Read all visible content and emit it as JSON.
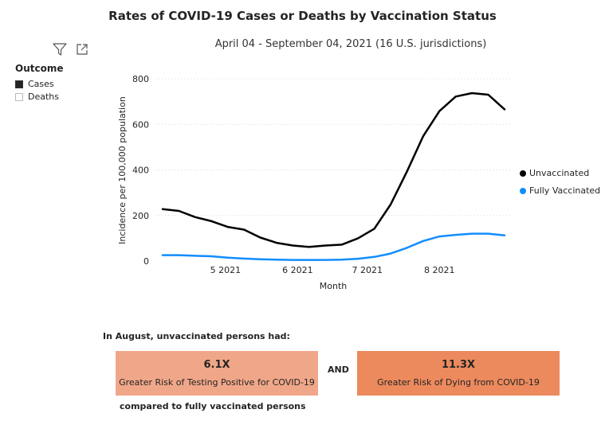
{
  "title": "Rates of COVID-19 Cases or Deaths by Vaccination Status",
  "subtitle": "April 04 - September 04, 2021 (16 U.S. jurisdictions)",
  "toolbar": {
    "filter_icon": "filter-icon",
    "focus_icon": "focus-mode-icon"
  },
  "slicer": {
    "title": "Outcome",
    "items": [
      {
        "label": "Cases",
        "selected": true
      },
      {
        "label": "Deaths",
        "selected": false
      }
    ]
  },
  "chart_data": {
    "type": "line",
    "xlabel": "Month",
    "ylabel": "Incidence per 100,000 population",
    "ylim": [
      0,
      800
    ],
    "yticks": [
      0,
      200,
      400,
      600,
      800
    ],
    "xticks": [
      "5 2021",
      "6 2021",
      "7 2021",
      "8 2021"
    ],
    "grid": true,
    "legend_position": "right",
    "weeks": 22,
    "series": [
      {
        "name": "Unvaccinated",
        "color": "#000000",
        "values": [
          228,
          220,
          193,
          175,
          150,
          138,
          103,
          80,
          68,
          62,
          68,
          72,
          100,
          142,
          248,
          392,
          548,
          658,
          722,
          737,
          730,
          666
        ]
      },
      {
        "name": "Fully Vaccinated",
        "color": "#118DFF",
        "values": [
          26,
          26,
          23,
          21,
          15,
          11,
          8,
          6,
          5,
          5,
          5,
          6,
          10,
          18,
          33,
          58,
          88,
          108,
          115,
          120,
          120,
          113
        ]
      }
    ]
  },
  "callout": {
    "heading": "In August, unvaccinated persons had:",
    "and_label": "AND",
    "footer": "compared to fully vaccinated persons",
    "cards": [
      {
        "value": "6.1X",
        "label": "Greater Risk of Testing Positive for COVID-19",
        "color": "#F0A789"
      },
      {
        "value": "11.3X",
        "label": "Greater Risk of Dying from COVID-19",
        "color": "#EC8A5E"
      }
    ]
  }
}
